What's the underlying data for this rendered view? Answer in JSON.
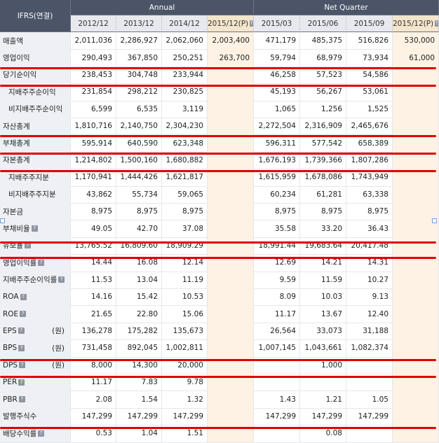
{
  "header": {
    "corner": "IFRS(연결)",
    "annual": "Annual",
    "quarter": "Net Quarter",
    "columns": [
      "2012/12",
      "2013/12",
      "2014/12",
      "2015/12(P)",
      "2015/03",
      "2015/06",
      "2015/09",
      "2015/12(P)"
    ]
  },
  "colors": {
    "header_dark": "#4b5567",
    "estimate_bg": "#fdf2e3",
    "highlight": "#e00000"
  },
  "rows": [
    {
      "label": "매출액",
      "indent": false,
      "info": false,
      "unit": "",
      "values": [
        "2,011,036",
        "2,286,927",
        "2,062,060",
        "2,003,400",
        "471,179",
        "485,375",
        "516,826",
        "530,000"
      ]
    },
    {
      "label": "영업이익",
      "indent": false,
      "info": false,
      "unit": "",
      "values": [
        "290,493",
        "367,850",
        "250,251",
        "263,700",
        "59,794",
        "68,979",
        "73,934",
        "61,000"
      ]
    },
    {
      "label": "당기순이익",
      "indent": false,
      "info": false,
      "unit": "",
      "values": [
        "238,453",
        "304,748",
        "233,944",
        "",
        "46,258",
        "57,523",
        "54,586",
        ""
      ]
    },
    {
      "label": "지배주주순이익",
      "indent": true,
      "info": false,
      "unit": "",
      "values": [
        "231,854",
        "298,212",
        "230,825",
        "",
        "45,193",
        "56,267",
        "53,061",
        ""
      ]
    },
    {
      "label": "비지배주주순이익",
      "indent": true,
      "info": false,
      "unit": "",
      "values": [
        "6,599",
        "6,535",
        "3,119",
        "",
        "1,065",
        "1,256",
        "1,525",
        ""
      ]
    },
    {
      "label": "자산총계",
      "indent": false,
      "info": false,
      "unit": "",
      "values": [
        "1,810,716",
        "2,140,750",
        "2,304,230",
        "",
        "2,272,504",
        "2,316,909",
        "2,465,676",
        ""
      ]
    },
    {
      "label": "부채총계",
      "indent": false,
      "info": false,
      "unit": "",
      "values": [
        "595,914",
        "640,590",
        "623,348",
        "",
        "596,311",
        "577,542",
        "658,389",
        ""
      ]
    },
    {
      "label": "자본총계",
      "indent": false,
      "info": false,
      "unit": "",
      "values": [
        "1,214,802",
        "1,500,160",
        "1,680,882",
        "",
        "1,676,193",
        "1,739,366",
        "1,807,286",
        ""
      ]
    },
    {
      "label": "지배주주지분",
      "indent": true,
      "info": false,
      "unit": "",
      "values": [
        "1,170,941",
        "1,444,426",
        "1,621,817",
        "",
        "1,615,959",
        "1,678,086",
        "1,743,949",
        ""
      ]
    },
    {
      "label": "비지배주주지분",
      "indent": true,
      "info": false,
      "unit": "",
      "values": [
        "43,862",
        "55,734",
        "59,065",
        "",
        "60,234",
        "61,281",
        "63,338",
        ""
      ]
    },
    {
      "label": "자본금",
      "indent": false,
      "info": false,
      "unit": "",
      "values": [
        "8,975",
        "8,975",
        "8,975",
        "",
        "8,975",
        "8,975",
        "8,975",
        ""
      ]
    },
    {
      "label": "부채비율",
      "indent": false,
      "info": true,
      "unit": "",
      "values": [
        "49.05",
        "42.70",
        "37.08",
        "",
        "35.58",
        "33.20",
        "36.43",
        ""
      ]
    },
    {
      "label": "유보율",
      "indent": false,
      "info": true,
      "unit": "",
      "values": [
        "13,765.52",
        "16,809.60",
        "18,909.29",
        "",
        "18,991.44",
        "19,683.64",
        "20,417.48",
        ""
      ]
    },
    {
      "label": "영업이익률",
      "indent": false,
      "info": true,
      "unit": "",
      "values": [
        "14.44",
        "16.08",
        "12.14",
        "",
        "12.69",
        "14.21",
        "14.31",
        ""
      ]
    },
    {
      "label": "지배주주순이익률",
      "indent": false,
      "info": true,
      "unit": "",
      "values": [
        "11.53",
        "13.04",
        "11.19",
        "",
        "9.59",
        "11.59",
        "10.27",
        ""
      ]
    },
    {
      "label": "ROA",
      "indent": false,
      "info": true,
      "unit": "",
      "values": [
        "14.16",
        "15.42",
        "10.53",
        "",
        "8.09",
        "10.03",
        "9.13",
        ""
      ]
    },
    {
      "label": "ROE",
      "indent": false,
      "info": true,
      "unit": "",
      "values": [
        "21.65",
        "22.80",
        "15.06",
        "",
        "11.17",
        "13.67",
        "12.40",
        ""
      ]
    },
    {
      "label": "EPS",
      "indent": false,
      "info": true,
      "unit": "(원)",
      "values": [
        "136,278",
        "175,282",
        "135,673",
        "",
        "26,564",
        "33,073",
        "31,188",
        ""
      ]
    },
    {
      "label": "BPS",
      "indent": false,
      "info": true,
      "unit": "(원)",
      "values": [
        "731,458",
        "892,045",
        "1,002,811",
        "",
        "1,007,145",
        "1,043,661",
        "1,082,374",
        ""
      ]
    },
    {
      "label": "DPS",
      "indent": false,
      "info": true,
      "unit": "(원)",
      "values": [
        "8,000",
        "14,300",
        "20,000",
        "",
        "",
        "1,000",
        "",
        ""
      ]
    },
    {
      "label": "PER",
      "indent": false,
      "info": true,
      "unit": "",
      "values": [
        "11.17",
        "7.83",
        "9.78",
        "",
        "",
        "",
        "",
        ""
      ]
    },
    {
      "label": "PBR",
      "indent": false,
      "info": true,
      "unit": "",
      "values": [
        "2.08",
        "1.54",
        "1.32",
        "",
        "1.43",
        "1.21",
        "1.05",
        ""
      ]
    },
    {
      "label": "발행주식수",
      "indent": false,
      "info": false,
      "unit": "",
      "values": [
        "147,299",
        "147,299",
        "147,299",
        "",
        "147,299",
        "147,299",
        "147,299",
        ""
      ]
    },
    {
      "label": "배당수익률",
      "indent": false,
      "info": true,
      "unit": "",
      "values": [
        "0.53",
        "1.04",
        "1.51",
        "",
        "",
        "0.08",
        "",
        ""
      ]
    }
  ]
}
